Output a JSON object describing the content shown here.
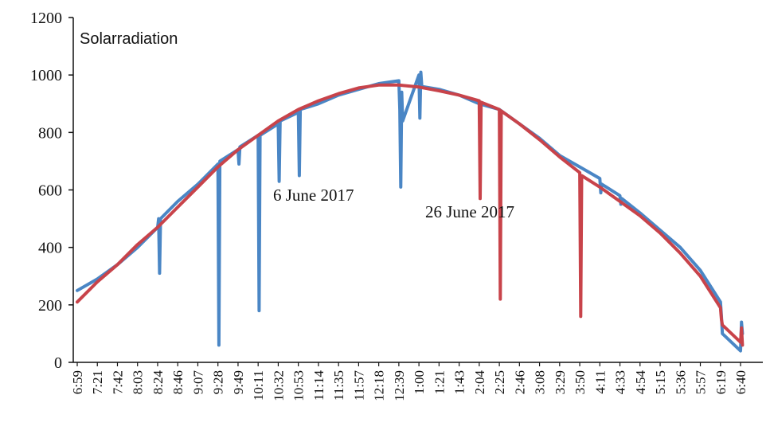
{
  "chart_data": {
    "type": "line",
    "title": "",
    "ylabel": "Solarradiation",
    "xlabel": "",
    "ylim": [
      0,
      1200
    ],
    "yticks": [
      0,
      200,
      400,
      600,
      800,
      1000,
      1200
    ],
    "grid": false,
    "legend": "none",
    "categories": [
      "6:59",
      "7:21",
      "7:42",
      "8:03",
      "8:24",
      "8:46",
      "9:07",
      "9:28",
      "9:49",
      "10:11",
      "10:32",
      "10:53",
      "11:14",
      "11:35",
      "11:57",
      "12:18",
      "12:39",
      "1:00",
      "1:21",
      "1:43",
      "2:04",
      "2:25",
      "2:46",
      "3:08",
      "3:29",
      "3:50",
      "4:11",
      "4:33",
      "4:54",
      "5:15",
      "5:36",
      "5:57",
      "6:19",
      "6:40"
    ],
    "annotations": [
      {
        "text": "6 June 2017",
        "x": "10:53",
        "y": 600
      },
      {
        "text": "26 June 2017",
        "x": "2:04",
        "y": 530
      }
    ],
    "series": [
      {
        "label": "6 June 2017",
        "color": "#4a86c5",
        "points": [
          [
            "6:59",
            250
          ],
          [
            "7:21",
            290
          ],
          [
            "7:42",
            340
          ],
          [
            "8:03",
            400
          ],
          [
            "8:24",
            470
          ],
          [
            "8:24",
            500
          ],
          [
            "8:24",
            310
          ],
          [
            "8:24",
            500
          ],
          [
            "8:46",
            560
          ],
          [
            "9:07",
            620
          ],
          [
            "9:28",
            690
          ],
          [
            "9:28",
            60
          ],
          [
            "9:28",
            700
          ],
          [
            "9:49",
            740
          ],
          [
            "9:49",
            690
          ],
          [
            "9:49",
            750
          ],
          [
            "10:11",
            790
          ],
          [
            "10:11",
            180
          ],
          [
            "10:11",
            790
          ],
          [
            "10:32",
            830
          ],
          [
            "10:32",
            630
          ],
          [
            "10:32",
            840
          ],
          [
            "10:53",
            870
          ],
          [
            "10:53",
            650
          ],
          [
            "10:53",
            880
          ],
          [
            "11:14",
            900
          ],
          [
            "11:35",
            930
          ],
          [
            "11:57",
            950
          ],
          [
            "12:18",
            970
          ],
          [
            "12:39",
            980
          ],
          [
            "12:39",
            880
          ],
          [
            "12:39",
            610
          ],
          [
            "12:39",
            940
          ],
          [
            "12:39",
            840
          ],
          [
            "1:00",
            1000
          ],
          [
            "1:00",
            850
          ],
          [
            "1:00",
            1010
          ],
          [
            "1:00",
            960
          ],
          [
            "1:21",
            950
          ],
          [
            "1:43",
            930
          ],
          [
            "2:04",
            900
          ],
          [
            "2:25",
            880
          ],
          [
            "2:46",
            830
          ],
          [
            "3:08",
            780
          ],
          [
            "3:29",
            720
          ],
          [
            "3:50",
            680
          ],
          [
            "4:11",
            640
          ],
          [
            "4:11",
            590
          ],
          [
            "4:11",
            620
          ],
          [
            "4:33",
            580
          ],
          [
            "4:33",
            550
          ],
          [
            "4:33",
            570
          ],
          [
            "4:54",
            520
          ],
          [
            "5:15",
            460
          ],
          [
            "5:36",
            400
          ],
          [
            "5:57",
            320
          ],
          [
            "6:19",
            210
          ],
          [
            "6:19",
            160
          ],
          [
            "6:19",
            100
          ],
          [
            "6:40",
            40
          ],
          [
            "6:40",
            140
          ],
          [
            "6:40",
            100
          ]
        ]
      },
      {
        "label": "26 June 2017",
        "color": "#c8434a",
        "points": [
          [
            "6:59",
            210
          ],
          [
            "7:21",
            280
          ],
          [
            "7:42",
            340
          ],
          [
            "8:03",
            410
          ],
          [
            "8:24",
            470
          ],
          [
            "8:46",
            540
          ],
          [
            "9:07",
            610
          ],
          [
            "9:28",
            680
          ],
          [
            "9:49",
            740
          ],
          [
            "10:11",
            790
          ],
          [
            "10:32",
            840
          ],
          [
            "10:53",
            880
          ],
          [
            "11:14",
            910
          ],
          [
            "11:35",
            935
          ],
          [
            "11:57",
            955
          ],
          [
            "12:18",
            965
          ],
          [
            "12:39",
            965
          ],
          [
            "1:00",
            958
          ],
          [
            "1:21",
            945
          ],
          [
            "1:43",
            930
          ],
          [
            "2:04",
            910
          ],
          [
            "2:04",
            570
          ],
          [
            "2:04",
            905
          ],
          [
            "2:25",
            880
          ],
          [
            "2:25",
            220
          ],
          [
            "2:25",
            875
          ],
          [
            "2:46",
            830
          ],
          [
            "3:08",
            775
          ],
          [
            "3:29",
            715
          ],
          [
            "3:50",
            660
          ],
          [
            "3:50",
            160
          ],
          [
            "3:50",
            650
          ],
          [
            "4:11",
            610
          ],
          [
            "4:33",
            560
          ],
          [
            "4:54",
            510
          ],
          [
            "5:15",
            450
          ],
          [
            "5:36",
            380
          ],
          [
            "5:57",
            300
          ],
          [
            "6:19",
            190
          ],
          [
            "6:19",
            150
          ],
          [
            "6:19",
            130
          ],
          [
            "6:40",
            70
          ],
          [
            "6:40",
            120
          ],
          [
            "6:40",
            60
          ]
        ]
      }
    ]
  }
}
